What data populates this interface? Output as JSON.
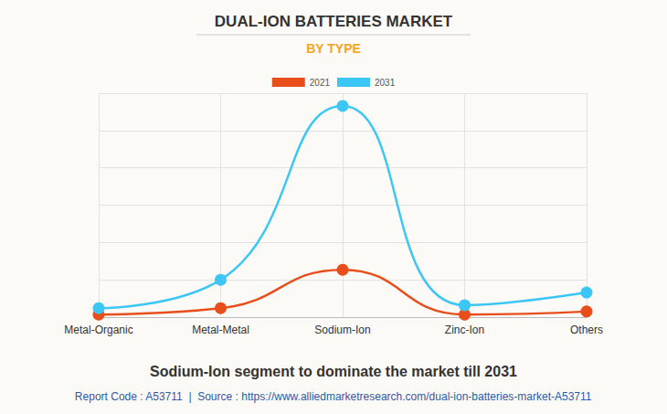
{
  "chart_data": {
    "type": "line",
    "title": "DUAL-ION BATTERIES MARKET",
    "subtitle": "BY TYPE",
    "categories": [
      "Metal-Organic",
      "Metal-Metal",
      "Sodium-Ion",
      "Zinc-Ion",
      "Others"
    ],
    "series": [
      {
        "name": "2021",
        "color": "#e84e1b",
        "values": [
          0.07,
          0.24,
          1.27,
          0.07,
          0.15
        ]
      },
      {
        "name": "2031",
        "color": "#3cc6f5",
        "values": [
          0.24,
          1.0,
          5.66,
          0.32,
          0.66
        ]
      }
    ],
    "ylim": [
      0,
      6
    ],
    "yticks": [
      0,
      1,
      2,
      3,
      4,
      5,
      6
    ],
    "grid": true,
    "legend": "top",
    "tick_labels": "x",
    "marker": "circle",
    "line_style": "solid",
    "annotations": [
      "Sodium-Ion segment to dominate the market till 2031",
      "Report Code : A53711  |  Source : https://www.alliedmarketresearch.com/dual-ion-batteries-market-A53711"
    ]
  }
}
